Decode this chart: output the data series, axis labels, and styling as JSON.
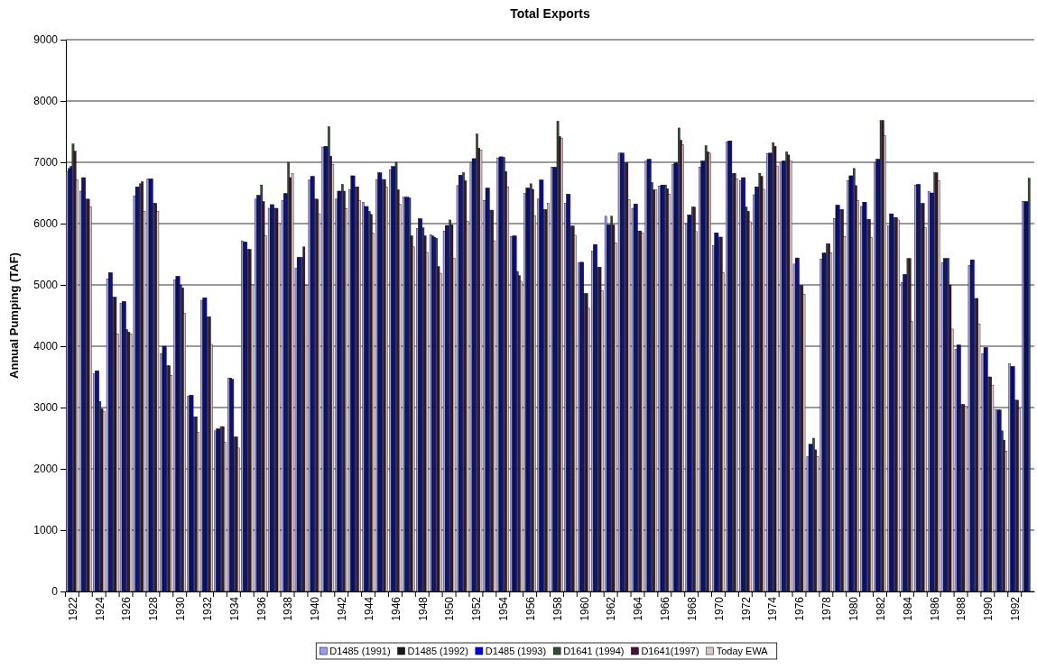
{
  "chart_data": {
    "type": "bar",
    "title": "Total Exports",
    "ylabel": "Annual Pumping (TAF)",
    "categories": [
      "1922",
      null,
      "1924",
      null,
      "1926",
      null,
      "1928",
      null,
      "1930",
      null,
      "1932",
      null,
      "1934",
      null,
      "1936",
      null,
      "1938",
      null,
      "1940",
      null,
      "1942",
      null,
      "1944",
      null,
      "1946",
      null,
      "1948",
      null,
      "1950",
      null,
      "1952",
      null,
      "1954",
      null,
      "1956",
      null,
      "1958",
      null,
      "1960",
      null,
      "1962",
      null,
      "1964",
      null,
      "1966",
      null,
      "1968",
      null,
      "1970",
      null,
      "1972",
      null,
      "1974",
      null,
      "1976",
      null,
      "1978",
      null,
      "1980",
      null,
      "1982",
      null,
      "1984",
      null,
      "1986",
      null,
      "1988",
      null,
      "1990",
      null,
      "1992",
      null
    ],
    "series": [
      {
        "name": "D1485 (1991)",
        "color": "#9999ff",
        "values": [
          6850,
          6530,
          3550,
          5100,
          4700,
          6450,
          6730,
          3880,
          5080,
          3180,
          4750,
          2620,
          3480,
          5720,
          6400,
          6250,
          6380,
          5270,
          6710,
          7250,
          6400,
          6550,
          6350,
          6720,
          6880,
          6430,
          5920,
          5820,
          5880,
          6620,
          7000,
          6380,
          7070,
          5790,
          6490,
          6400,
          6920,
          6330,
          5360,
          5550,
          6120,
          7150,
          6250,
          7020,
          6610,
          6960,
          6000,
          6920,
          5640,
          7330,
          6700,
          6470,
          7140,
          7000,
          5340,
          2200,
          5420,
          6080,
          6700,
          6280,
          7000,
          5960,
          5040,
          6630,
          6520,
          5360,
          3950,
          5320,
          3880,
          2960,
          3710,
          6360
        ]
      },
      {
        "name": "D1485 (1992)",
        "color": "#1a1a1a",
        "values": [
          6900,
          6750,
          3600,
          5200,
          4730,
          6600,
          6730,
          4000,
          5140,
          3200,
          4790,
          2650,
          3480,
          5700,
          6460,
          6310,
          6490,
          5450,
          6770,
          7260,
          6530,
          6780,
          6280,
          6830,
          6930,
          6430,
          6080,
          5800,
          5970,
          6790,
          7060,
          6580,
          7090,
          5800,
          6580,
          6710,
          6920,
          6480,
          5370,
          5660,
          5980,
          7150,
          6320,
          7050,
          6630,
          6990,
          6140,
          7020,
          5850,
          7350,
          6750,
          6600,
          7150,
          7020,
          5440,
          2400,
          5520,
          6300,
          6780,
          6350,
          7050,
          6160,
          5170,
          6640,
          6500,
          5430,
          4020,
          5410,
          3980,
          2960,
          3670,
          6360
        ]
      },
      {
        "name": "D1485 (1993)",
        "color": "#0000ff",
        "values": [
          6930,
          6750,
          3600,
          5200,
          4730,
          6600,
          6730,
          4000,
          5140,
          3200,
          4790,
          2650,
          3460,
          5700,
          6460,
          6310,
          6490,
          5450,
          6770,
          7260,
          6530,
          6780,
          6280,
          6830,
          6930,
          6430,
          6080,
          5780,
          5970,
          6790,
          7060,
          6580,
          7090,
          5800,
          6580,
          6710,
          6920,
          6480,
          5370,
          5660,
          5980,
          7150,
          6320,
          7050,
          6630,
          6990,
          6140,
          7020,
          5850,
          7350,
          6750,
          6600,
          7150,
          7020,
          5440,
          2400,
          5520,
          6300,
          6780,
          6350,
          7050,
          6160,
          5170,
          6640,
          6500,
          5430,
          4020,
          5410,
          3980,
          2960,
          3670,
          6360
        ]
      },
      {
        "name": "D1641 (1994)",
        "color": "#2f4f2f",
        "values": [
          7300,
          6400,
          3100,
          4800,
          4270,
          6650,
          6330,
          3680,
          5000,
          2850,
          4480,
          2690,
          2520,
          5580,
          6630,
          6250,
          7000,
          5450,
          6400,
          7580,
          6640,
          6600,
          6200,
          6720,
          7000,
          6420,
          5930,
          5760,
          6060,
          6830,
          7460,
          6220,
          7080,
          5220,
          6650,
          6230,
          7670,
          5960,
          4860,
          5290,
          6120,
          6990,
          5880,
          6670,
          6630,
          7560,
          6270,
          7270,
          5780,
          6820,
          6270,
          6820,
          7320,
          7170,
          4990,
          2500,
          5670,
          6230,
          6900,
          6070,
          7680,
          6100,
          5430,
          6330,
          6830,
          5430,
          3050,
          4780,
          3500,
          2620,
          3120,
          6740
        ]
      },
      {
        "name": "D1641(1997)",
        "color": "#4b0f3b",
        "values": [
          7180,
          6400,
          2980,
          4800,
          4230,
          6680,
          6330,
          3680,
          4950,
          2850,
          4480,
          2690,
          2520,
          5580,
          6360,
          6250,
          6750,
          5620,
          6400,
          7100,
          6530,
          6600,
          6150,
          6720,
          6550,
          5800,
          5800,
          5300,
          5980,
          6700,
          7230,
          6220,
          6850,
          5150,
          6560,
          6230,
          7420,
          5960,
          4860,
          5290,
          5980,
          6990,
          5880,
          6550,
          6570,
          7360,
          6270,
          7170,
          5780,
          6820,
          6200,
          6770,
          7260,
          7120,
          4990,
          2310,
          5670,
          6230,
          6620,
          6070,
          7680,
          6100,
          5430,
          6330,
          6830,
          5000,
          3050,
          4780,
          3500,
          2470,
          3120,
          null
        ]
      },
      {
        "name": "Today EWA",
        "color": "#d8c8c4",
        "values": [
          6710,
          6270,
          2930,
          4200,
          4200,
          6200,
          6200,
          3520,
          4540,
          2600,
          4030,
          2430,
          2340,
          5000,
          5800,
          6000,
          6820,
          4990,
          6160,
          6960,
          6240,
          6380,
          5850,
          6600,
          6320,
          5620,
          5530,
          5190,
          5430,
          6040,
          7200,
          5720,
          6600,
          5060,
          6130,
          6330,
          7390,
          5810,
          4620,
          4900,
          5680,
          6390,
          5850,
          6550,
          6480,
          7290,
          5870,
          7150,
          5200,
          6730,
          6030,
          6560,
          6940,
          7020,
          4850,
          2200,
          5520,
          5790,
          6380,
          5770,
          7430,
          6060,
          4400,
          5930,
          6700,
          4280,
          3020,
          4360,
          3360,
          2290,
          2980,
          null
        ]
      }
    ],
    "ylim": [
      0,
      9000
    ],
    "yticks": [
      0,
      1000,
      2000,
      3000,
      4000,
      5000,
      6000,
      7000,
      8000,
      9000
    ],
    "grid": "y",
    "legend": "bottom"
  }
}
